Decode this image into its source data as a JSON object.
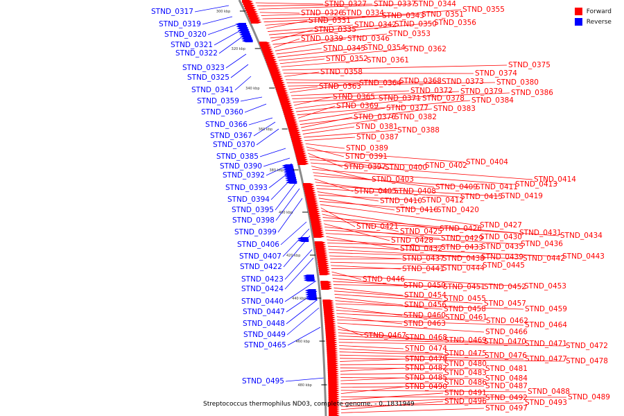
{
  "legend": {
    "forward_label": "Forward",
    "reverse_label": "Reverse",
    "forward_color": "#ff0000",
    "reverse_color": "#0000ff"
  },
  "caption": "Streptococcus thermophilus ND03, complete genome. - 0..1831949",
  "kbp_ticks": [
    "300 kbp",
    "320 kbp",
    "340 kbp",
    "360 kbp",
    "380 kbp",
    "400 kbp",
    "420 kbp",
    "440 kbp",
    "460 kbp",
    "480 kbp"
  ],
  "reverse_genes": [
    "STND_0317",
    "STND_0319",
    "STND_0320",
    "STND_0321",
    "STND_0322",
    "STND_0323",
    "STND_0325",
    "STND_0341",
    "STND_0359",
    "STND_0360",
    "STND_0366",
    "STND_0367",
    "STND_0370",
    "STND_0385",
    "STND_0390",
    "STND_0392",
    "STND_0393",
    "STND_0394",
    "STND_0395",
    "STND_0398",
    "STND_0399",
    "STND_0406",
    "STND_0407",
    "STND_0422",
    "STND_0423",
    "STND_0424",
    "STND_0440",
    "STND_0447",
    "STND_0448",
    "STND_0449",
    "STND_0465",
    "STND_0495"
  ],
  "forward_genes": [
    "STND_0327",
    "STND_0337",
    "STND_0344",
    "STND_0326",
    "STND_0334",
    "STND_0343",
    "STND_0351",
    "STND_0355",
    "STND_0331",
    "STND_0342",
    "STND_0350",
    "STND_0356",
    "STND_0335",
    "STND_0353",
    "STND_0339",
    "STND_0346",
    "STND_0345",
    "STND_0354",
    "STND_0362",
    "STND_0352",
    "STND_0361",
    "STND_0375",
    "STND_0374",
    "STND_0358",
    "STND_0368",
    "STND_0373",
    "STND_0380",
    "STND_0363",
    "STND_0364",
    "STND_0372",
    "STND_0379",
    "STND_0386",
    "STND_0365",
    "STND_0371",
    "STND_0378",
    "STND_0384",
    "STND_0369",
    "STND_0377",
    "STND_0383",
    "STND_0376",
    "STND_0382",
    "STND_0381",
    "STND_0388",
    "STND_0387",
    "STND_0389",
    "STND_0391",
    "STND_0404",
    "STND_0397",
    "STND_0400",
    "STND_0402",
    "STND_0414",
    "STND_0403",
    "STND_0413",
    "STND_0409",
    "STND_0411",
    "STND_0405",
    "STND_0408",
    "STND_0419",
    "STND_0415",
    "STND_0410",
    "STND_0412",
    "STND_0416",
    "STND_0420",
    "STND_0427",
    "STND_0421",
    "STND_0426",
    "STND_0425",
    "STND_0431",
    "STND_0434",
    "STND_0428",
    "STND_0429",
    "STND_0430",
    "STND_0436",
    "STND_0432",
    "STND_0433",
    "STND_0435",
    "STND_0443",
    "STND_0439",
    "STND_0442",
    "STND_0437",
    "STND_0438",
    "STND_0445",
    "STND_0441",
    "STND_0444",
    "STND_0446",
    "STND_0453",
    "STND_0450",
    "STND_0451",
    "STND_0452",
    "STND_0454",
    "STND_0455",
    "STND_0457",
    "STND_0456",
    "STND_0458",
    "STND_0459",
    "STND_0460",
    "STND_0461",
    "STND_0462",
    "STND_0463",
    "STND_0464",
    "STND_0466",
    "STND_0467",
    "STND_0468",
    "STND_0469",
    "STND_0470",
    "STND_0471",
    "STND_0472",
    "STND_0474",
    "STND_0475",
    "STND_0476",
    "STND_0477",
    "STND_0478",
    "STND_0479",
    "STND_0480",
    "STND_0481",
    "STND_0482",
    "STND_0483",
    "STND_0484",
    "STND_0485",
    "STND_0486",
    "STND_0487",
    "STND_0488",
    "STND_0490",
    "STND_0489",
    "STND_0491",
    "STND_0492",
    "STND_0493",
    "STND_0496",
    "STND_0497"
  ]
}
